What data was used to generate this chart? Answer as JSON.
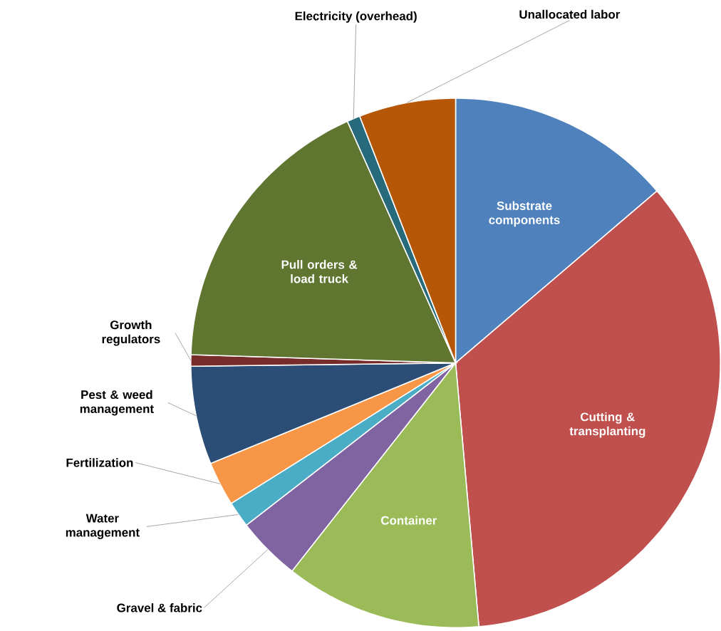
{
  "chart_data": {
    "type": "pie",
    "categories": [
      "Substrate components",
      "Cutting & transplanting",
      "Container",
      "Gravel & fabric",
      "Water management",
      "Fertilization",
      "Pest & weed management",
      "Growth regulators",
      "Pull orders & load truck",
      "Electricity (overhead)",
      "Unallocated labor"
    ],
    "values": [
      13.75,
      34.85,
      12,
      3.9,
      1.6,
      2.7,
      6,
      0.7,
      17.8,
      0.8,
      5.9
    ],
    "colors": [
      "#4f81bd",
      "#c0504d",
      "#9bbb59",
      "#8064a2",
      "#4bacc6",
      "#f79646",
      "#2c4d75",
      "#772c2a",
      "#5f7530",
      "#276a7c",
      "#b65708"
    ]
  }
}
